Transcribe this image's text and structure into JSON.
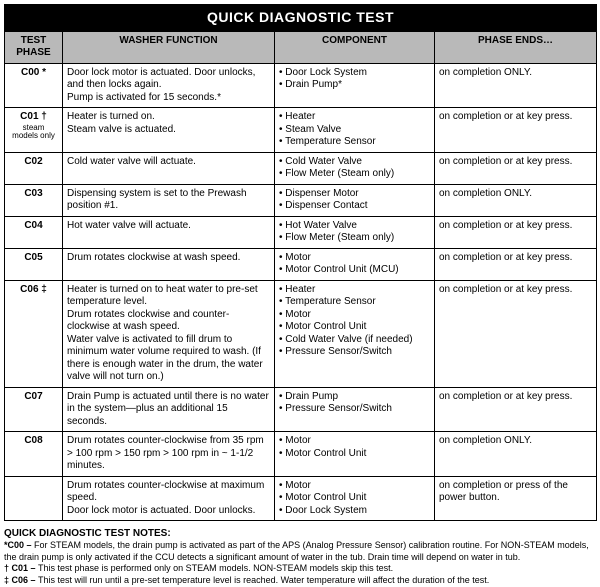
{
  "title": "QUICK DIAGNOSTIC TEST",
  "columns": {
    "phase": "TEST PHASE",
    "function": "WASHER FUNCTION",
    "component": "COMPONENT",
    "end": "PHASE ENDS…"
  },
  "col_widths": {
    "phase": "58px",
    "function": "212px",
    "component": "160px",
    "end": "162px"
  },
  "rows": [
    {
      "phase": "C00 *",
      "phase_sub": "",
      "function": "Door lock motor is actuated. Door unlocks, and then locks again.\nPump is activated for 15 seconds.*",
      "component": "• Door Lock System\n• Drain Pump*",
      "end": "on completion ONLY."
    },
    {
      "phase": "C01 †",
      "phase_sub": "steam models only",
      "function": "Heater is turned on.\nSteam valve is actuated.",
      "component": "• Heater\n• Steam Valve\n• Temperature Sensor",
      "end": "on completion or at key press."
    },
    {
      "phase": "C02",
      "phase_sub": "",
      "function": "Cold water valve will actuate.",
      "component": "• Cold Water Valve\n• Flow Meter (Steam only)",
      "end": "on completion or at key press."
    },
    {
      "phase": "C03",
      "phase_sub": "",
      "function": "Dispensing system is set to the Prewash position #1.",
      "component": "• Dispenser Motor\n• Dispenser Contact",
      "end": "on completion ONLY."
    },
    {
      "phase": "C04",
      "phase_sub": "",
      "function": "Hot water valve will actuate.",
      "component": "• Hot Water Valve\n• Flow Meter (Steam only)",
      "end": "on completion or at key press."
    },
    {
      "phase": "C05",
      "phase_sub": "",
      "function": "Drum rotates clockwise at wash speed.",
      "component": "• Motor\n• Motor Control Unit (MCU)",
      "end": "on completion or at key press."
    },
    {
      "phase": "C06 ‡",
      "phase_sub": "",
      "function": "Heater is turned on to heat water to pre-set temperature level.\nDrum rotates clockwise and counter-clockwise at wash speed.\nWater valve is activated to fill drum to minimum water volume required to wash. (If there is enough water in the drum, the water valve will not turn on.)",
      "component": "• Heater\n• Temperature Sensor\n• Motor\n• Motor Control Unit\n• Cold Water Valve (if needed)\n• Pressure Sensor/Switch",
      "end": "on completion or at key press."
    },
    {
      "phase": "C07",
      "phase_sub": "",
      "function": "Drain Pump is actuated until there is no water in the system—plus an additional 15 seconds.",
      "component": "• Drain Pump\n• Pressure Sensor/Switch",
      "end": "on completion or at key press."
    },
    {
      "phase": "C08",
      "phase_sub": "",
      "function": "Drum rotates counter-clockwise from 35 rpm > 100 rpm > 150 rpm > 100 rpm in ~ 1-1/2 minutes.",
      "component": "• Motor\n• Motor Control Unit",
      "end": "on completion ONLY."
    },
    {
      "phase": "",
      "phase_sub": "",
      "function": "Drum rotates counter-clockwise at maximum speed.\nDoor lock motor is actuated. Door unlocks.",
      "component": "• Motor\n• Motor Control Unit\n• Door Lock System",
      "end": "on completion or press of the power button."
    }
  ],
  "notes": {
    "heading": "QUICK DIAGNOSTIC TEST NOTES:",
    "items": [
      {
        "bold": "*C00 – ",
        "text": "For STEAM models, the drain pump is activated as part of the APS (Analog Pressure Sensor) calibration routine. For NON-STEAM models, the drain pump is only activated if the CCU detects a significant amount of water in the tub. Drain time will depend on water in tub."
      },
      {
        "bold": "† C01 – ",
        "text": "This test phase is performed only on STEAM models. NON-STEAM models skip this test."
      },
      {
        "bold": "‡ C06 – ",
        "text": "This test will run until a pre-set temperature level is reached. Water temperature will affect the duration of the test."
      }
    ]
  }
}
